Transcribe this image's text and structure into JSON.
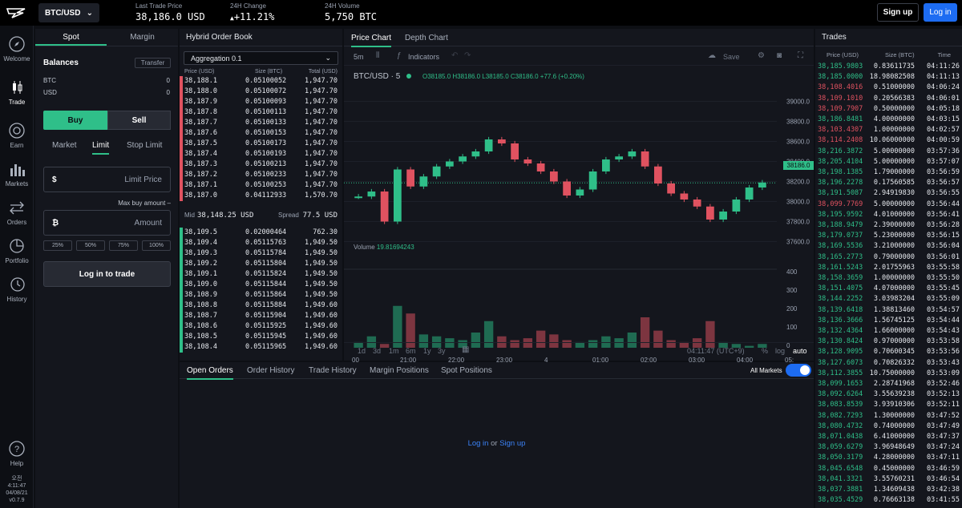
{
  "header": {
    "pair": "BTC/USD",
    "stats": [
      {
        "label": "Last Trade Price",
        "value": "38,186.0 USD"
      },
      {
        "label": "24H Change",
        "value": "+11.21%"
      },
      {
        "label": "24H Volume",
        "value": "5,750 BTC"
      }
    ],
    "signup": "Sign up",
    "login": "Log in"
  },
  "nav": [
    {
      "label": "Welcome",
      "icon": "compass-icon"
    },
    {
      "label": "Trade",
      "icon": "trade-icon"
    },
    {
      "label": "Earn",
      "icon": "earn-icon"
    },
    {
      "label": "Markets",
      "icon": "markets-icon"
    },
    {
      "label": "Orders",
      "icon": "orders-icon"
    },
    {
      "label": "Portfolio",
      "icon": "portfolio-icon"
    },
    {
      "label": "History",
      "icon": "history-icon"
    },
    {
      "label": "Help",
      "icon": "help-icon"
    }
  ],
  "clock": {
    "l1": "오전",
    "l2": "4:11:47",
    "l3": "04/08/21",
    "l4": "v0.7.9"
  },
  "trade": {
    "tabs": [
      "Spot",
      "Margin"
    ],
    "balances": "Balances",
    "transfer": "Transfer",
    "assets": [
      {
        "name": "BTC",
        "value": "0"
      },
      {
        "name": "USD",
        "value": "0"
      }
    ],
    "buy": "Buy",
    "sell": "Sell",
    "types": [
      "Market",
      "Limit",
      "Stop Limit"
    ],
    "limit_price": "Limit Price",
    "max_buy": "Max buy amount –",
    "amount": "Amount",
    "pcts": [
      "25%",
      "50%",
      "75%",
      "100%"
    ],
    "login_to_trade": "Log in to trade"
  },
  "book": {
    "title": "Hybrid Order Book",
    "aggregation": "Aggregation 0.1",
    "cols": [
      "Price (USD)",
      "Size (BTC)",
      "Total (USD)"
    ],
    "asks": [
      [
        "38,188.1",
        "0.05100052",
        "1,947.70"
      ],
      [
        "38,188.0",
        "0.05100072",
        "1,947.70"
      ],
      [
        "38,187.9",
        "0.05100093",
        "1,947.70"
      ],
      [
        "38,187.8",
        "0.05100113",
        "1,947.70"
      ],
      [
        "38,187.7",
        "0.05100133",
        "1,947.70"
      ],
      [
        "38,187.6",
        "0.05100153",
        "1,947.70"
      ],
      [
        "38,187.5",
        "0.05100173",
        "1,947.70"
      ],
      [
        "38,187.4",
        "0.05100193",
        "1,947.70"
      ],
      [
        "38,187.3",
        "0.05100213",
        "1,947.70"
      ],
      [
        "38,187.2",
        "0.05100233",
        "1,947.70"
      ],
      [
        "38,187.1",
        "0.05100253",
        "1,947.70"
      ],
      [
        "38,187.0",
        "0.04112933",
        "1,570.70"
      ]
    ],
    "mid_label": "Mid",
    "mid": "38,148.25 USD",
    "spread_label": "Spread",
    "spread": "77.5 USD",
    "bids": [
      [
        "38,109.5",
        "0.02000464",
        "762.30"
      ],
      [
        "38,109.4",
        "0.05115763",
        "1,949.50"
      ],
      [
        "38,109.3",
        "0.05115784",
        "1,949.50"
      ],
      [
        "38,109.2",
        "0.05115804",
        "1,949.50"
      ],
      [
        "38,109.1",
        "0.05115824",
        "1,949.50"
      ],
      [
        "38,109.0",
        "0.05115844",
        "1,949.50"
      ],
      [
        "38,108.9",
        "0.05115864",
        "1,949.50"
      ],
      [
        "38,108.8",
        "0.05115884",
        "1,949.60"
      ],
      [
        "38,108.7",
        "0.05115904",
        "1,949.60"
      ],
      [
        "38,108.6",
        "0.05115925",
        "1,949.60"
      ],
      [
        "38,108.5",
        "0.05115945",
        "1,949.60"
      ],
      [
        "38,108.4",
        "0.05115965",
        "1,949.60"
      ]
    ]
  },
  "chart": {
    "tabs": [
      "Price Chart",
      "Depth Chart"
    ],
    "interval": "5m",
    "indicators": "Indicators",
    "save": "Save",
    "symbol": "BTC/USD · 5",
    "ohlc": "O38185.0 H38186.0 L38185.0 C38186.0 +77.6 (+0.20%)",
    "last": "38186.0",
    "volume_label": "Volume",
    "volume_value": "19.81694243",
    "yticks": [
      "39000.0",
      "38800.0",
      "38600.0",
      "38400.0",
      "38200.0",
      "38000.0",
      "37800.0",
      "37600.0"
    ],
    "vticks": [
      "400",
      "300",
      "200",
      "100",
      "0"
    ],
    "xticks": [
      "00",
      "21:00",
      "22:00",
      "23:00",
      "4",
      "01:00",
      "02:00",
      "03:00",
      "04:00",
      "05:"
    ],
    "ranges": [
      "1d",
      "3d",
      "1m",
      "6m",
      "1y",
      "3y"
    ],
    "time": "04:11:47 (UTC+9)",
    "scale_opts": [
      "%",
      "log",
      "auto"
    ]
  },
  "chart_data": {
    "type": "line",
    "title": "BTC/USD · 5",
    "ylim": [
      37500,
      39100
    ],
    "y_ticks": [
      37600,
      37800,
      38000,
      38200,
      38400,
      38600,
      38800,
      39000
    ],
    "series": [
      {
        "name": "BTC/USD",
        "values": [
          38050,
          38100,
          37800,
          38320,
          38150,
          38250,
          38350,
          38400,
          38450,
          38500,
          38620,
          38580,
          38420,
          38380,
          38300,
          38200,
          38060,
          38120,
          38300,
          38420,
          38450,
          38500,
          38350,
          38180,
          38080,
          38020,
          37950,
          37820,
          37900,
          38020,
          38140,
          38190
        ]
      },
      {
        "name": "Volume",
        "values": [
          30,
          60,
          20,
          220,
          180,
          70,
          60,
          50,
          40,
          80,
          140,
          60,
          40,
          50,
          90,
          70,
          40,
          30,
          40,
          60,
          50,
          80,
          160,
          90,
          40,
          30,
          50,
          140,
          30,
          20,
          10,
          20
        ]
      }
    ]
  },
  "orders": {
    "tabs": [
      "Open Orders",
      "Order History",
      "Trade History",
      "Margin Positions",
      "Spot Positions"
    ],
    "all_markets": "All Markets",
    "login": "Log in",
    "or": "or",
    "signup": "Sign up"
  },
  "trades": {
    "title": "Trades",
    "cols": [
      "Price (USD)",
      "Size (BTC)",
      "Time"
    ],
    "rows": [
      [
        "38,185.9803",
        "0.83611735",
        "04:11:26",
        "g"
      ],
      [
        "38,185.0000",
        "18.98082508",
        "04:11:13",
        "g"
      ],
      [
        "38,108.4016",
        "0.51000000",
        "04:06:24",
        "r"
      ],
      [
        "38,109.1010",
        "0.20566383",
        "04:06:01",
        "r"
      ],
      [
        "38,109.7907",
        "0.50000000",
        "04:05:18",
        "r"
      ],
      [
        "38,186.8481",
        "4.00000000",
        "04:03:15",
        "g"
      ],
      [
        "38,103.4307",
        "1.00000000",
        "04:02:57",
        "r"
      ],
      [
        "38,114.2408",
        "10.06000000",
        "04:00:59",
        "r"
      ],
      [
        "38,216.3872",
        "5.00000000",
        "03:57:36",
        "g"
      ],
      [
        "38,205.4104",
        "5.00000000",
        "03:57:07",
        "g"
      ],
      [
        "38,198.1385",
        "1.79000000",
        "03:56:59",
        "g"
      ],
      [
        "38,196.2278",
        "0.17560585",
        "03:56:57",
        "g"
      ],
      [
        "38,191.5087",
        "2.94919830",
        "03:56:55",
        "g"
      ],
      [
        "38,099.7769",
        "5.00000000",
        "03:56:44",
        "r"
      ],
      [
        "38,195.9592",
        "4.01000000",
        "03:56:41",
        "g"
      ],
      [
        "38,188.9479",
        "2.39000000",
        "03:56:28",
        "g"
      ],
      [
        "38,179.0737",
        "5.23000000",
        "03:56:15",
        "g"
      ],
      [
        "38,169.5536",
        "3.21000000",
        "03:56:04",
        "g"
      ],
      [
        "38,165.2773",
        "0.79000000",
        "03:56:01",
        "g"
      ],
      [
        "38,161.5243",
        "2.01755963",
        "03:55:58",
        "g"
      ],
      [
        "38,158.3659",
        "1.00000000",
        "03:55:50",
        "g"
      ],
      [
        "38,151.4075",
        "4.07000000",
        "03:55:45",
        "g"
      ],
      [
        "38,144.2252",
        "3.03983204",
        "03:55:09",
        "g"
      ],
      [
        "38,139.6418",
        "1.38813460",
        "03:54:57",
        "g"
      ],
      [
        "38,136.3666",
        "1.56745125",
        "03:54:44",
        "g"
      ],
      [
        "38,132.4364",
        "1.66000000",
        "03:54:43",
        "g"
      ],
      [
        "38,130.8424",
        "0.97000000",
        "03:53:58",
        "g"
      ],
      [
        "38,128.9095",
        "0.70600345",
        "03:53:56",
        "g"
      ],
      [
        "38,127.6073",
        "0.70826332",
        "03:53:43",
        "g"
      ],
      [
        "38,112.3855",
        "10.75000000",
        "03:53:09",
        "g"
      ],
      [
        "38,099.1653",
        "2.28741968",
        "03:52:46",
        "g"
      ],
      [
        "38,092.6264",
        "3.55639238",
        "03:52:13",
        "g"
      ],
      [
        "38,083.8539",
        "3.93910306",
        "03:52:11",
        "g"
      ],
      [
        "38,082.7293",
        "1.30000000",
        "03:47:52",
        "g"
      ],
      [
        "38,080.4732",
        "0.74000000",
        "03:47:49",
        "g"
      ],
      [
        "38,071.0438",
        "6.41000000",
        "03:47:37",
        "g"
      ],
      [
        "38,059.6279",
        "3.96948649",
        "03:47:24",
        "g"
      ],
      [
        "38,050.3179",
        "4.28000000",
        "03:47:11",
        "g"
      ],
      [
        "38,045.6548",
        "0.45000000",
        "03:46:59",
        "g"
      ],
      [
        "38,041.3321",
        "3.55760231",
        "03:46:54",
        "g"
      ],
      [
        "38,037.3881",
        "1.34609438",
        "03:42:38",
        "g"
      ],
      [
        "38,035.4529",
        "0.76663138",
        "03:41:55",
        "g"
      ]
    ]
  }
}
